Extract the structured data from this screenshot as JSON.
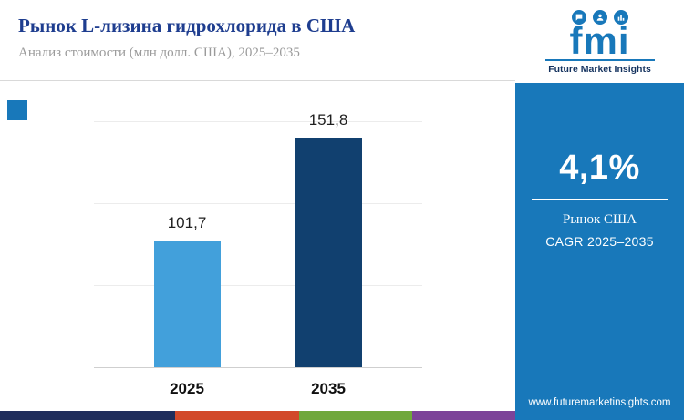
{
  "header": {
    "title": "Рынок L-лизина гидрохлорида в США",
    "subtitle": "Анализ стоимости (млн долл. США), 2025–2035"
  },
  "logo": {
    "text": "fmi",
    "tagline": "Future Market Insights",
    "icons": [
      "chat-icon",
      "person-icon",
      "bar-chart-icon"
    ],
    "brand_color": "#1878ba"
  },
  "chart_data": {
    "type": "bar",
    "title": "Рынок L-лизина гидрохлорида в США",
    "categories": [
      "2025",
      "2035"
    ],
    "values": [
      101.7,
      151.8
    ],
    "value_labels": [
      "101,7",
      "151,8"
    ],
    "ylabel": "млн долл. США",
    "ylim": [
      40,
      160
    ],
    "bar_colors": [
      "#42a0db",
      "#11406f"
    ],
    "grid": true,
    "legend": false
  },
  "sidebar": {
    "stat": "4,1%",
    "stat_label_line1": "Рынок США",
    "stat_label_line2": "CAGR 2025–2035",
    "website": "www.futuremarketinsights.com",
    "accent": "#1878ba"
  },
  "footer": {
    "stripe_colors": [
      "#1f2d5c",
      "#d2492a",
      "#70a83b",
      "#7c4399"
    ]
  }
}
